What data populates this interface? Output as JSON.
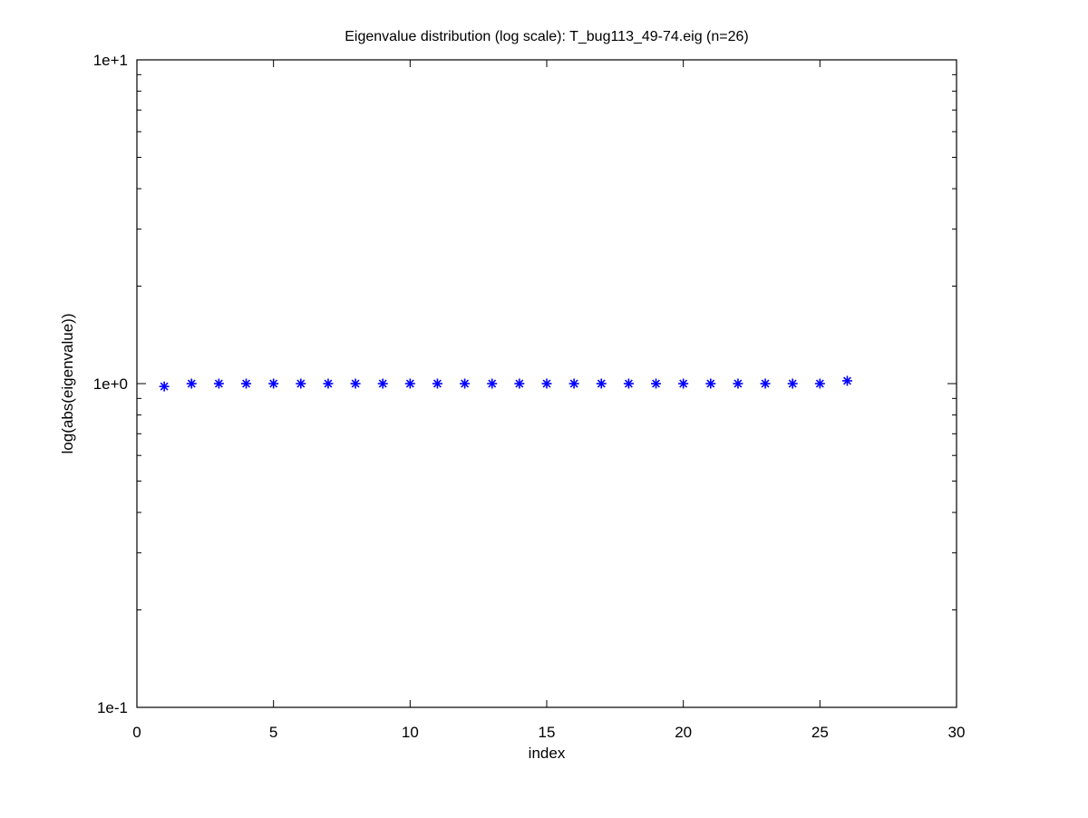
{
  "chart_data": {
    "type": "scatter",
    "title": "Eigenvalue distribution (log scale): T_bug113_49-74.eig (n=26)",
    "xlabel": "index",
    "ylabel": "log(abs(eigenvalue))",
    "xlim": [
      0,
      30
    ],
    "ylim": [
      0.1,
      10
    ],
    "yscale": "log",
    "grid": false,
    "x_ticks": [
      "0",
      "5",
      "10",
      "15",
      "20",
      "25",
      "30"
    ],
    "y_ticks": [
      "1e-1",
      "1e+0",
      "1e+1"
    ],
    "marker": "asterisk",
    "series": [
      {
        "color": "#0000ff",
        "x": [
          1,
          2,
          3,
          4,
          5,
          6,
          7,
          8,
          9,
          10,
          11,
          12,
          13,
          14,
          15,
          16,
          17,
          18,
          19,
          20,
          21,
          22,
          23,
          24,
          25,
          26
        ],
        "y": [
          0.98,
          1.0,
          1.0,
          1.0,
          1.0,
          1.0,
          1.0,
          1.0,
          1.0,
          1.0,
          1.0,
          1.0,
          1.0,
          1.0,
          1.0,
          1.0,
          1.0,
          1.0,
          1.0,
          1.0,
          1.0,
          1.0,
          1.0,
          1.0,
          1.0,
          1.02
        ]
      }
    ]
  }
}
